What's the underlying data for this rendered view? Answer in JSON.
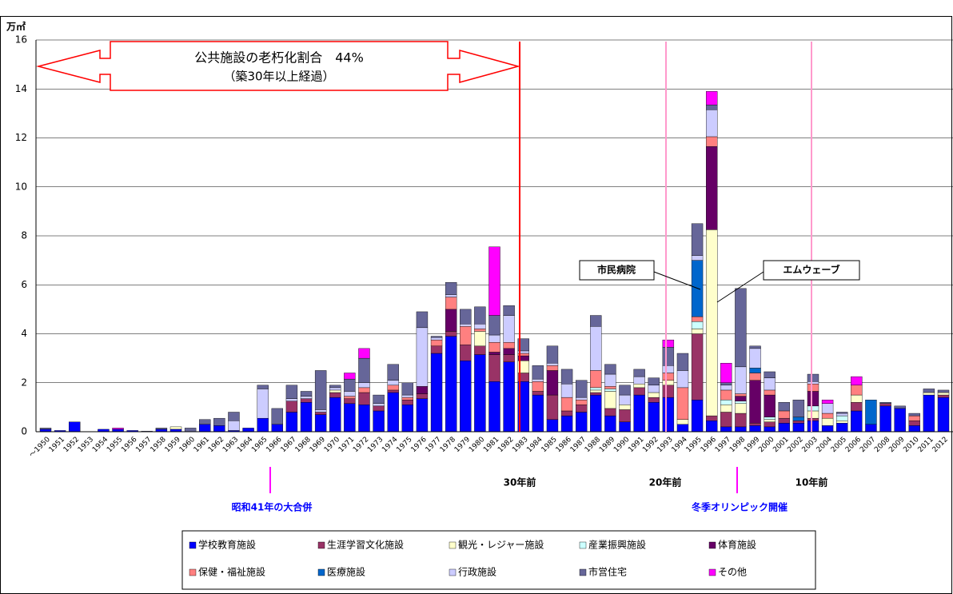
{
  "chart_data": {
    "type": "stacked_bar",
    "y_unit": "万㎡",
    "annotation_box": [
      "公共施設の老朽化割合　44%",
      "（築30年以上経過）"
    ],
    "annotations": [
      "30年前",
      "20年前",
      "10年前",
      "昭和41年の大合併",
      "冬季オリンピック開催"
    ],
    "callouts": [
      "市民病院",
      "エムウェーブ"
    ],
    "categories": [
      "～1950",
      "1951",
      "1952",
      "1953",
      "1954",
      "1955",
      "1956",
      "1957",
      "1958",
      "1959",
      "1960",
      "1961",
      "1962",
      "1963",
      "1964",
      "1965",
      "1966",
      "1967",
      "1968",
      "1969",
      "1970",
      "1971",
      "1972",
      "1973",
      "1974",
      "1975",
      "1976",
      "1977",
      "1978",
      "1979",
      "1980",
      "1981",
      "1982",
      "1983",
      "1984",
      "1985",
      "1986",
      "1987",
      "1988",
      "1989",
      "1990",
      "1991",
      "1992",
      "1993",
      "1994",
      "1995",
      "1996",
      "1997",
      "1998",
      "1999",
      "2000",
      "2001",
      "2002",
      "2003",
      "2004",
      "2005",
      "2006",
      "2007",
      "2008",
      "2009",
      "2010",
      "2011",
      "2012"
    ],
    "ylim": [
      0,
      16
    ],
    "yticks": [
      0,
      2,
      4,
      6,
      8,
      10,
      12,
      14,
      16
    ],
    "grid": true,
    "series": [
      {
        "name": "学校教育施設",
        "color": "#0000ff",
        "values": [
          0.1,
          0.05,
          0.4,
          0,
          0.1,
          0.1,
          0.05,
          0.02,
          0.1,
          0.1,
          0,
          0.3,
          0.25,
          0.05,
          0.15,
          0.55,
          0.3,
          0.8,
          1.2,
          0.7,
          1.4,
          1.15,
          1.1,
          0.85,
          1.6,
          1.1,
          1.35,
          3.2,
          3.9,
          2.9,
          3.15,
          2.05,
          2.85,
          2.05,
          1.5,
          0.5,
          0.65,
          0.8,
          1.5,
          0.65,
          0.4,
          1.5,
          1.2,
          1.4,
          0.3,
          1.3,
          0.45,
          0.2,
          0.2,
          0.25,
          0.2,
          0.35,
          0.35,
          0.45,
          0.25,
          0.35,
          0.85,
          0.3,
          1.05,
          0.95,
          0.25,
          1.5,
          1.4
        ]
      },
      {
        "name": "生涯学習文化施設",
        "color": "#993366",
        "values": [
          0,
          0,
          0,
          0,
          0,
          0,
          0,
          0,
          0,
          0,
          0,
          0,
          0,
          0,
          0,
          0,
          0,
          0.45,
          0.15,
          0.1,
          0.2,
          0.2,
          0.5,
          0.2,
          0.1,
          0.2,
          0.2,
          0.3,
          0.2,
          0.65,
          0.35,
          1.1,
          0.3,
          0.35,
          0.15,
          1.0,
          0.2,
          0.3,
          0.1,
          0.3,
          0.5,
          0.3,
          0.2,
          0.5,
          0,
          2.7,
          0.2,
          0.6,
          0.55,
          0.1,
          0.2,
          0.2,
          0.1,
          0.1,
          0,
          0,
          0.35,
          0,
          0.1,
          0,
          0.2,
          0,
          0.1
        ]
      },
      {
        "name": "観光・レジャー施設",
        "color": "#ffffcc",
        "values": [
          0,
          0,
          0,
          0,
          0,
          0,
          0,
          0,
          0,
          0.1,
          0,
          0,
          0,
          0,
          0,
          0,
          0,
          0,
          0,
          0,
          0.1,
          0,
          0,
          0,
          0,
          0,
          0,
          0,
          0,
          0,
          0.6,
          0,
          0,
          0.5,
          0,
          0,
          0,
          0,
          0.1,
          0.7,
          0.2,
          0.15,
          0.2,
          0.2,
          0.2,
          0.2,
          7.6,
          0.3,
          0.4,
          0,
          0.1,
          0,
          0,
          0.3,
          0.3,
          0.1,
          0.3,
          0,
          0,
          0,
          0,
          0.1,
          0.1
        ]
      },
      {
        "name": "産業振興施設",
        "color": "#ccffff",
        "values": [
          0,
          0,
          0,
          0,
          0,
          0,
          0,
          0,
          0,
          0,
          0,
          0,
          0,
          0,
          0,
          0,
          0,
          0,
          0,
          0,
          0,
          0,
          0,
          0,
          0,
          0,
          0,
          0,
          0,
          0,
          0,
          0,
          0,
          0,
          0,
          0,
          0,
          0,
          0.1,
          0.1,
          0,
          0,
          0,
          0,
          0,
          0.3,
          0,
          0.2,
          0.1,
          0,
          0.1,
          0,
          0,
          0.2,
          0,
          0.2,
          0,
          0,
          0,
          0,
          0,
          0,
          0
        ]
      },
      {
        "name": "体育施設",
        "color": "#660066",
        "values": [
          0,
          0,
          0,
          0,
          0,
          0,
          0,
          0,
          0,
          0,
          0,
          0,
          0,
          0,
          0,
          0,
          0,
          0,
          0,
          0,
          0,
          0,
          0,
          0,
          0,
          0,
          0.3,
          0,
          0.9,
          0,
          0,
          0.1,
          0.25,
          0.2,
          0,
          1.0,
          0,
          0,
          0,
          0,
          0,
          0,
          0,
          0,
          0,
          0,
          3.4,
          0,
          0.2,
          1.75,
          0.9,
          0,
          0,
          0.6,
          0,
          0,
          0,
          0,
          0,
          0,
          0,
          0,
          0
        ]
      },
      {
        "name": "保健・福祉施設",
        "color": "#ff8080",
        "values": [
          0,
          0,
          0,
          0,
          0,
          0,
          0,
          0,
          0,
          0,
          0,
          0,
          0,
          0,
          0,
          0,
          0,
          0,
          0,
          0,
          0,
          0.1,
          0.2,
          0,
          0.2,
          0.1,
          0,
          0.25,
          0.5,
          0.75,
          0.1,
          0.4,
          0.25,
          0.1,
          0.4,
          0.2,
          0.55,
          0.2,
          0.7,
          0.1,
          0,
          0,
          0,
          0.3,
          1.3,
          0.2,
          0.4,
          0.4,
          0.1,
          0.3,
          0.2,
          0.3,
          0,
          0.3,
          0.2,
          0,
          0.4,
          0,
          0,
          0,
          0.2,
          0,
          0
        ]
      },
      {
        "name": "医療施設",
        "color": "#0066cc",
        "values": [
          0,
          0,
          0,
          0,
          0,
          0,
          0,
          0,
          0,
          0,
          0,
          0,
          0,
          0,
          0,
          0,
          0,
          0,
          0,
          0,
          0,
          0,
          0,
          0,
          0,
          0,
          0,
          0,
          0,
          0,
          0,
          0,
          0,
          0,
          0,
          0,
          0,
          0,
          0,
          0,
          0,
          0,
          0,
          0,
          0,
          2.3,
          0,
          0,
          0,
          0.2,
          0,
          0,
          0.15,
          0,
          0,
          0,
          0,
          1.0,
          0,
          0,
          0,
          0,
          0
        ]
      },
      {
        "name": "行政施設",
        "color": "#ccccff",
        "values": [
          0,
          0,
          0,
          0,
          0,
          0,
          0,
          0,
          0,
          0,
          0,
          0,
          0,
          0.4,
          0,
          1.2,
          0,
          0.1,
          0.1,
          0.1,
          0.1,
          0.2,
          0.2,
          0.1,
          0.2,
          0.1,
          2.4,
          0.1,
          0.1,
          0.1,
          0.2,
          0.3,
          1.1,
          0.1,
          0.1,
          0.1,
          0.55,
          0.1,
          1.8,
          0.5,
          0.4,
          0.3,
          0.3,
          0.3,
          0.7,
          0.2,
          1.1,
          0.2,
          1.1,
          0.8,
          0.5,
          0,
          0,
          0.1,
          0.4,
          0.1,
          0,
          0,
          0,
          0,
          0,
          0,
          0
        ]
      },
      {
        "name": "市営住宅",
        "color": "#666699",
        "values": [
          0.05,
          0,
          0,
          0,
          0,
          0,
          0,
          0,
          0.05,
          0,
          0.15,
          0.2,
          0.3,
          0.35,
          0,
          0.15,
          0.65,
          0.55,
          0.2,
          1.6,
          0.1,
          0.5,
          1.0,
          0.35,
          0.65,
          0.5,
          0.65,
          0.05,
          0.5,
          0.6,
          0.7,
          0.8,
          0.4,
          0.5,
          0.55,
          0.7,
          0.6,
          0.7,
          0.45,
          0.4,
          0.4,
          0.3,
          0.3,
          0.75,
          0.7,
          1.3,
          0.2,
          0.1,
          3.2,
          0.1,
          0.25,
          0.35,
          0.7,
          0.3,
          0,
          0.05,
          0,
          0,
          0.05,
          0.1,
          0.1,
          0.15,
          0.1
        ]
      },
      {
        "name": "その他",
        "color": "#ff00ff",
        "values": [
          0,
          0,
          0,
          0,
          0,
          0.05,
          0,
          0,
          0,
          0,
          0,
          0,
          0,
          0,
          0,
          0,
          0,
          0,
          0,
          0,
          0,
          0.25,
          0.4,
          0,
          0,
          0,
          0,
          0,
          0,
          0,
          0,
          2.8,
          0,
          0,
          0,
          0,
          0,
          0,
          0,
          0,
          0,
          0,
          0,
          0.3,
          0,
          0,
          0.55,
          0.8,
          0,
          0,
          0,
          0,
          0,
          0,
          0.15,
          0,
          0.35,
          0,
          0,
          0,
          0,
          0,
          0
        ]
      }
    ]
  }
}
